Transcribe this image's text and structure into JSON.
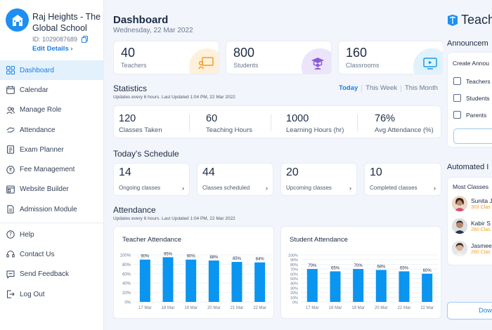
{
  "school": {
    "name": "Raj Heights - The Global School",
    "id": "ID: 1029087689",
    "edit_label": "Edit Details"
  },
  "sidebar": {
    "items": [
      {
        "label": "Dashboard",
        "icon": "grid-icon",
        "active": true
      },
      {
        "label": "Calendar",
        "icon": "calendar-icon"
      },
      {
        "label": "Manage Role",
        "icon": "users-icon"
      },
      {
        "label": "Attendance",
        "icon": "hand-icon"
      },
      {
        "label": "Exam Planner",
        "icon": "exam-icon"
      },
      {
        "label": "Fee Management",
        "icon": "money-icon"
      },
      {
        "label": "Website Builder",
        "icon": "website-icon"
      },
      {
        "label": "Admission Module",
        "icon": "document-icon"
      }
    ],
    "bottom": [
      {
        "label": "Help",
        "icon": "help-icon"
      },
      {
        "label": "Contact Us",
        "icon": "headset-icon"
      },
      {
        "label": "Send Feedback",
        "icon": "feedback-icon"
      },
      {
        "label": "Log Out",
        "icon": "logout-icon"
      }
    ]
  },
  "header": {
    "title": "Dashboard",
    "date": "Wednesday, 22 Mar 2022"
  },
  "kpis": [
    {
      "value": "40",
      "label": "Teachers",
      "color": "#fff0db"
    },
    {
      "value": "800",
      "label": "Students",
      "color": "#ece4fb"
    },
    {
      "value": "160",
      "label": "Classrooms",
      "color": "#e0f2fd"
    }
  ],
  "statistics": {
    "title": "Statistics",
    "subtitle": "Updates every 6 hours. Last Updated 1:04 PM, 22 Mar 2022",
    "tabs": [
      "Today",
      "This Week",
      "This Month"
    ],
    "items": [
      {
        "value": "120",
        "label": "Classes Taken"
      },
      {
        "value": "60",
        "label": "Teaching Hours"
      },
      {
        "value": "1000",
        "label": "Learning Hours (hr)"
      },
      {
        "value": "76%",
        "label": "Avg Attendance (%)"
      }
    ]
  },
  "schedule": {
    "title": "Today's Schedule",
    "items": [
      {
        "value": "14",
        "label": "Ongoing classes"
      },
      {
        "value": "44",
        "label": "Classes scheduled"
      },
      {
        "value": "20",
        "label": "Upcoming classes"
      },
      {
        "value": "10",
        "label": "Completed classes"
      }
    ]
  },
  "attendance": {
    "title": "Attendance",
    "subtitle": "Updates every 6 hours. Last Updated 1:04 PM, 22 Mar 2022"
  },
  "chart_data": [
    {
      "type": "bar",
      "title": "Teacher Attendance",
      "categories": [
        "17 Mar",
        "18 Mar",
        "19 Mar",
        "20 Mar",
        "21 Mar",
        "22 Mar"
      ],
      "values": [
        90,
        95,
        90,
        88,
        85,
        84
      ],
      "data_labels": [
        "90%",
        "95%",
        "90%",
        "88%",
        "85%",
        "84%"
      ],
      "ylim": [
        0,
        100
      ],
      "yticks": [
        "0%",
        "20%",
        "40%",
        "60%",
        "80%",
        "100%"
      ],
      "grid": true,
      "color": "#0a95f0"
    },
    {
      "type": "bar",
      "title": "Student Attendance",
      "categories": [
        "17 Mar",
        "18 Mar",
        "19 Mar",
        "20 Mar",
        "21 Mar",
        "22 Mar"
      ],
      "values": [
        70,
        65,
        70,
        68,
        65,
        60
      ],
      "data_labels": [
        "70%",
        "65%",
        "70%",
        "68%",
        "65%",
        "60%"
      ],
      "ylim": [
        0,
        100
      ],
      "yticks": [
        "0%",
        "10%",
        "20%",
        "30%",
        "40%",
        "50%",
        "60%",
        "70%",
        "80%",
        "90%",
        "100%"
      ],
      "grid": true,
      "color": "#0a95f0"
    }
  ],
  "right_panel": {
    "brand": "Teach",
    "announcements_title": "Announcem",
    "create_label": "Create Annou",
    "options": [
      "Teachers",
      "Students",
      "Parents"
    ],
    "automated_title": "Automated I",
    "most_classes_label": "Most Classes",
    "teachers": [
      {
        "name": "Sunita J",
        "count": "303 Clas"
      },
      {
        "name": "Kabir S",
        "count": "280 Clas"
      },
      {
        "name": "Jasmee",
        "count": "260 Clas"
      }
    ],
    "download_label": "Dow"
  }
}
